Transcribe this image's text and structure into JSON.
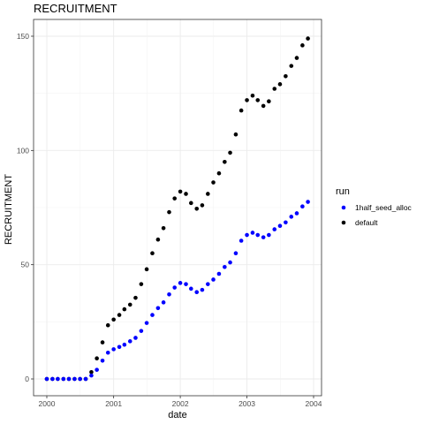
{
  "chart_data": {
    "type": "scatter",
    "title": "RECRUITMENT",
    "xlabel": "date",
    "ylabel": "RECRUITMENT",
    "xlim": [
      "2000-01-01",
      "2004-01-01"
    ],
    "ylim": [
      0,
      150
    ],
    "x_ticks": [
      "2000",
      "2001",
      "2002",
      "2003",
      "2004"
    ],
    "y_ticks": [
      0,
      50,
      100,
      150
    ],
    "grid": true,
    "legend": {
      "title": "run",
      "position": "right"
    },
    "x": [
      "2000-01",
      "2000-02",
      "2000-03",
      "2000-04",
      "2000-05",
      "2000-06",
      "2000-07",
      "2000-08",
      "2000-09",
      "2000-10",
      "2000-11",
      "2000-12",
      "2001-01",
      "2001-02",
      "2001-03",
      "2001-04",
      "2001-05",
      "2001-06",
      "2001-07",
      "2001-08",
      "2001-09",
      "2001-10",
      "2001-11",
      "2001-12",
      "2002-01",
      "2002-02",
      "2002-03",
      "2002-04",
      "2002-05",
      "2002-06",
      "2002-07",
      "2002-08",
      "2002-09",
      "2002-10",
      "2002-11",
      "2002-12",
      "2003-01",
      "2003-02",
      "2003-03",
      "2003-04",
      "2003-05",
      "2003-06",
      "2003-07",
      "2003-08",
      "2003-09",
      "2003-10",
      "2003-11",
      "2003-12"
    ],
    "series": [
      {
        "name": "1half_seed_alloc",
        "color": "#0000ff",
        "values": [
          0,
          0,
          0,
          0,
          0,
          0,
          0,
          0,
          1.5,
          4,
          8,
          11.5,
          13,
          14,
          15,
          16.5,
          18,
          21,
          24.5,
          28,
          31,
          33.5,
          37,
          40,
          42,
          41.5,
          39.5,
          38,
          39,
          41.5,
          43.5,
          46,
          49,
          51,
          55,
          60.5,
          63,
          64,
          63,
          62,
          63,
          65.5,
          67,
          68.5,
          71,
          72.5,
          75.5,
          77.5
        ]
      },
      {
        "name": "default",
        "color": "#000000",
        "values": [
          0,
          0,
          0,
          0,
          0,
          0,
          0,
          0,
          3,
          9,
          16,
          23.5,
          26,
          28,
          30.5,
          32.5,
          35.5,
          41.5,
          48,
          55,
          61,
          66,
          73,
          79,
          82,
          81,
          77,
          74.5,
          76,
          81,
          86,
          90,
          95,
          99,
          107,
          117.5,
          122,
          124,
          122,
          119.5,
          121.5,
          127,
          129,
          132.5,
          137,
          140.5,
          146,
          149
        ]
      }
    ]
  }
}
